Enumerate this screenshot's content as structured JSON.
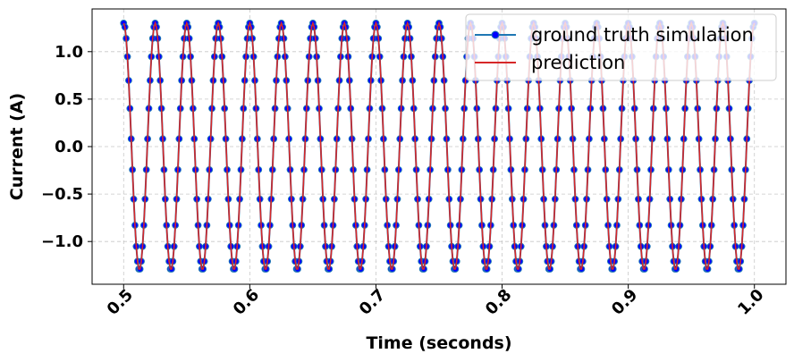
{
  "chart_data": {
    "type": "line",
    "xlabel": "Time (seconds)",
    "ylabel": "Current (A)",
    "xlim": [
      0.475,
      1.025
    ],
    "ylim": [
      -1.45,
      1.45
    ],
    "x_ticks": [
      0.5,
      0.6,
      0.7,
      0.8,
      0.9,
      1.0
    ],
    "x_tick_labels": [
      "0.5",
      "0.6",
      "0.7",
      "0.8",
      "0.9",
      "1.0"
    ],
    "y_ticks": [
      -1.0,
      -0.5,
      0.0,
      0.5,
      1.0
    ],
    "y_tick_labels": [
      "−1.0",
      "−0.5",
      "0.0",
      "0.5",
      "1.0"
    ],
    "grid": true,
    "legend_position": "top-right",
    "series": [
      {
        "name": "ground truth simulation",
        "style": "line-markers",
        "line_color": "#1f77b4",
        "marker_color": "#0000ff",
        "amplitude": 1.3,
        "frequency_hz": 40,
        "phase_deg": 90,
        "x_start": 0.5,
        "x_end": 1.0,
        "x_step": 0.001
      },
      {
        "name": "prediction",
        "style": "line",
        "line_color": "#d62728",
        "amplitude": 1.3,
        "frequency_hz": 40,
        "phase_deg": 90,
        "x_start": 0.5,
        "x_end": 1.0,
        "x_step": 0.001
      }
    ]
  }
}
